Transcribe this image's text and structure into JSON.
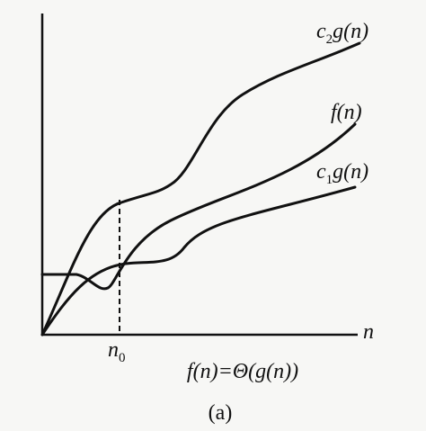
{
  "curves": [
    {
      "base": "c",
      "sub": "2",
      "rest": "g(n)"
    },
    {
      "base": "f(n)"
    },
    {
      "base": "c",
      "sub": "1",
      "rest": "g(n)"
    }
  ],
  "x_axis_label": "n",
  "threshold": {
    "base": "n",
    "sub": "0"
  },
  "formula": "f(n)=Θ(g(n))",
  "caption": "(a)"
}
